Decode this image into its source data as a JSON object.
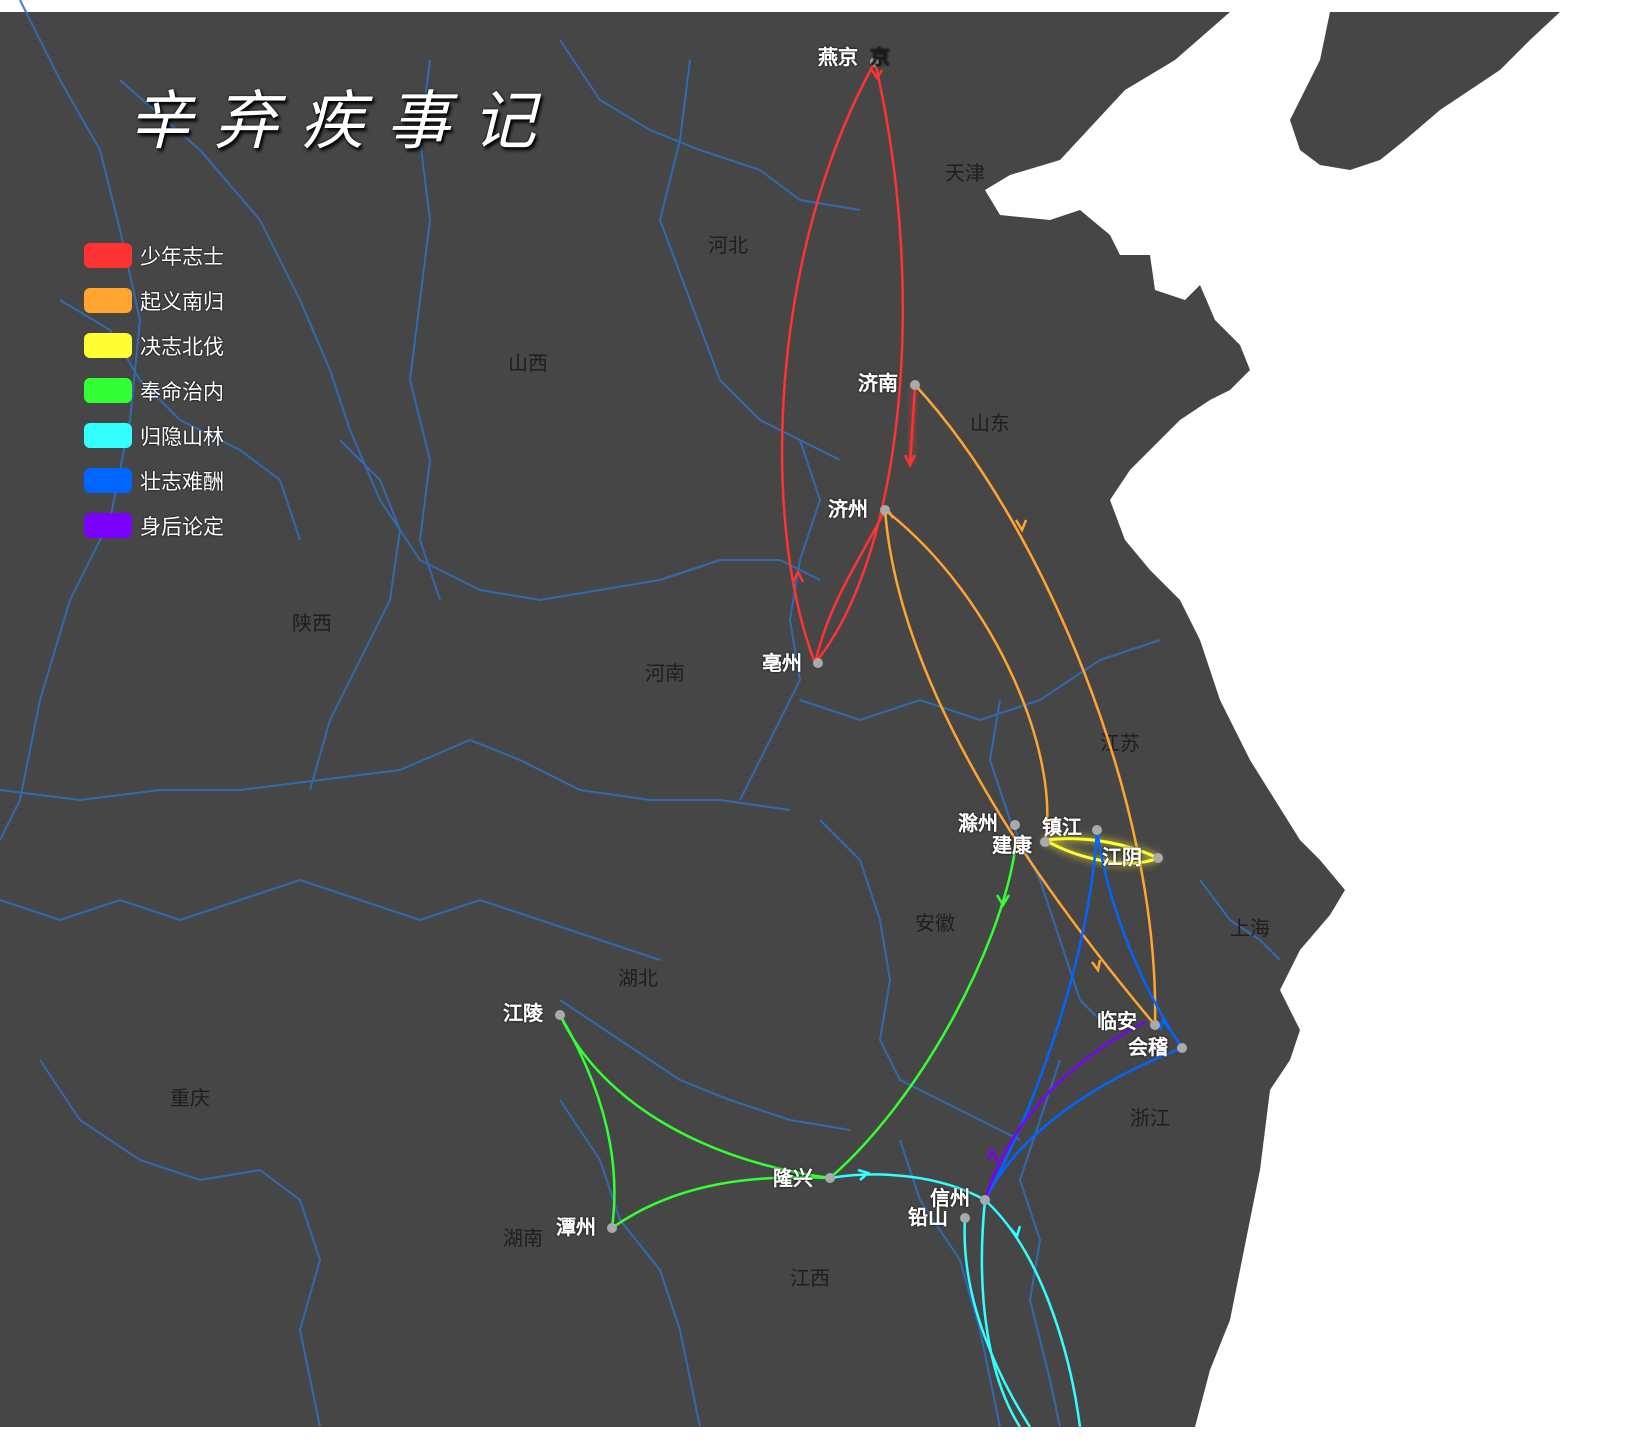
{
  "title": "辛弃疾事记",
  "colors": {
    "land": "#464646",
    "border": "#2f6fba",
    "sea": "#ffffff",
    "city_dot": "#aaaaaa",
    "label_fill": "#ffffff"
  },
  "legend": [
    {
      "name": "少年志士",
      "color": "#ff3333"
    },
    {
      "name": "起义南归",
      "color": "#ffa530"
    },
    {
      "name": "决志北伐",
      "color": "#ffff33"
    },
    {
      "name": "奉命治内",
      "color": "#33ff33"
    },
    {
      "name": "归隐山林",
      "color": "#33ffff"
    },
    {
      "name": "壮志难酬",
      "color": "#0066ff"
    },
    {
      "name": "身后论定",
      "color": "#7a00ff"
    }
  ],
  "provinces": [
    "河北",
    "山西",
    "陕西",
    "河南",
    "山东",
    "江苏",
    "安徽",
    "上海",
    "湖北",
    "重庆",
    "湖南",
    "江西",
    "浙江",
    "天津"
  ],
  "cities": [
    "燕京",
    "济南",
    "济州",
    "亳州",
    "滁州",
    "建康",
    "镇江",
    "江阴",
    "临安",
    "会稽",
    "江陵",
    "隆兴",
    "潭州",
    "信州",
    "铅山"
  ],
  "clipped_label": "京"
}
